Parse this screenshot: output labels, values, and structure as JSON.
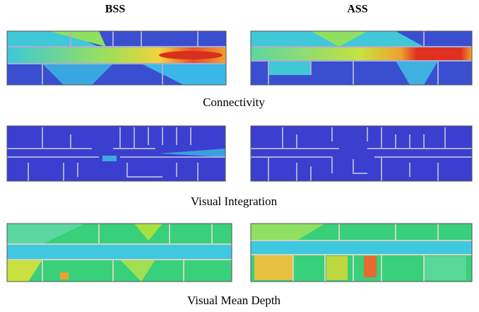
{
  "headers": {
    "left": "BSS",
    "right": "ASS"
  },
  "captions": [
    "Connectivity",
    "Visual Integration",
    "Visual Mean Depth"
  ]
}
